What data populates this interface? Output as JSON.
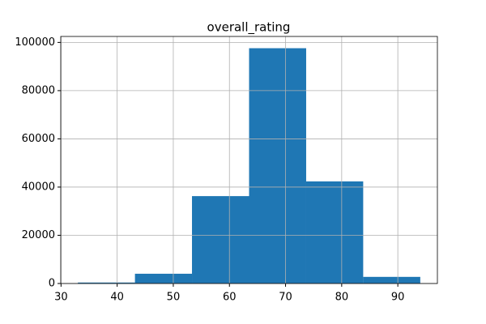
{
  "chart_data": {
    "type": "histogram",
    "title": "overall_rating",
    "bins": [
      33,
      43.17,
      53.33,
      63.5,
      73.67,
      83.83,
      94
    ],
    "counts": [
      400,
      4050,
      36250,
      97600,
      42350,
      2750
    ],
    "color": "#1f77b4",
    "xlim": [
      29.95,
      97.05
    ],
    "xticks": [
      30,
      40,
      50,
      60,
      70,
      80,
      90
    ],
    "ylim": [
      0,
      102480
    ],
    "yticks": [
      0,
      20000,
      40000,
      60000,
      80000,
      100000
    ],
    "grid": true
  }
}
